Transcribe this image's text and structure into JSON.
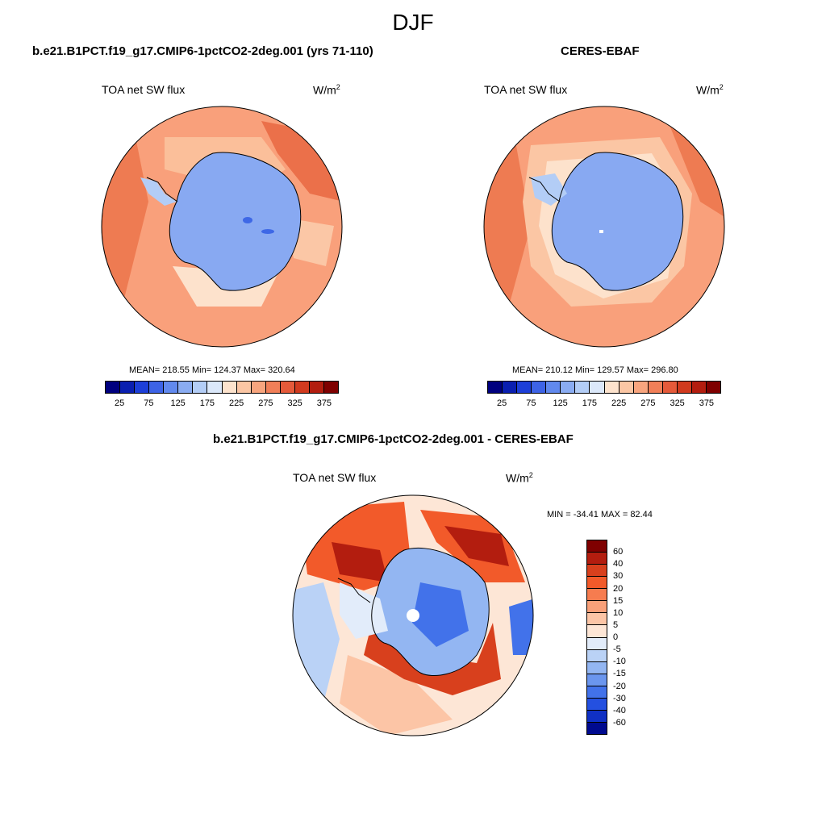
{
  "title": "DJF",
  "panels": {
    "model": {
      "title": "b.e21.B1PCT.f19_g17.CMIP6-1pctCO2-2deg.001 (yrs 71-110)",
      "variable": "TOA net SW flux",
      "units_base": "W/m",
      "units_exp": "2",
      "stats": "MEAN= 218.55  Min= 124.37  Max= 320.64"
    },
    "obs": {
      "title": "CERES-EBAF",
      "variable": "TOA net SW flux",
      "units_base": "W/m",
      "units_exp": "2",
      "stats": "MEAN= 210.12  Min= 129.57  Max= 296.80"
    },
    "diff": {
      "title": "b.e21.B1PCT.f19_g17.CMIP6-1pctCO2-2deg.001 - CERES-EBAF",
      "variable": "TOA net SW flux",
      "units_base": "W/m",
      "units_exp": "2",
      "stats": "MIN = -34.41 MAX =  82.44"
    }
  },
  "colorbars": {
    "abs": {
      "colors": [
        "#00007f",
        "#0a1fb0",
        "#1d3fd8",
        "#3d63e6",
        "#6189ee",
        "#8aacf2",
        "#b3cdf6",
        "#dbe8fa",
        "#fde3cd",
        "#fbc6a4",
        "#f8a57e",
        "#f17f58",
        "#e55a3a",
        "#d13a1e",
        "#b31d0f",
        "#7f0000"
      ],
      "labels": [
        "25",
        "75",
        "125",
        "175",
        "225",
        "275",
        "325",
        "375"
      ]
    },
    "diff": {
      "colors": [
        "#7f0000",
        "#b31d0f",
        "#d8401d",
        "#f25a2a",
        "#f67c4f",
        "#f9a079",
        "#fcc5a6",
        "#fde6d6",
        "#e2ecfa",
        "#bad2f6",
        "#93b6f2",
        "#6b96ee",
        "#4272ea",
        "#2450e0",
        "#1030c4",
        "#000a8f"
      ],
      "labels": [
        "60",
        "40",
        "30",
        "20",
        "15",
        "10",
        "5",
        "0",
        "-5",
        "-10",
        "-15",
        "-20",
        "-30",
        "-40",
        "-60"
      ]
    }
  }
}
